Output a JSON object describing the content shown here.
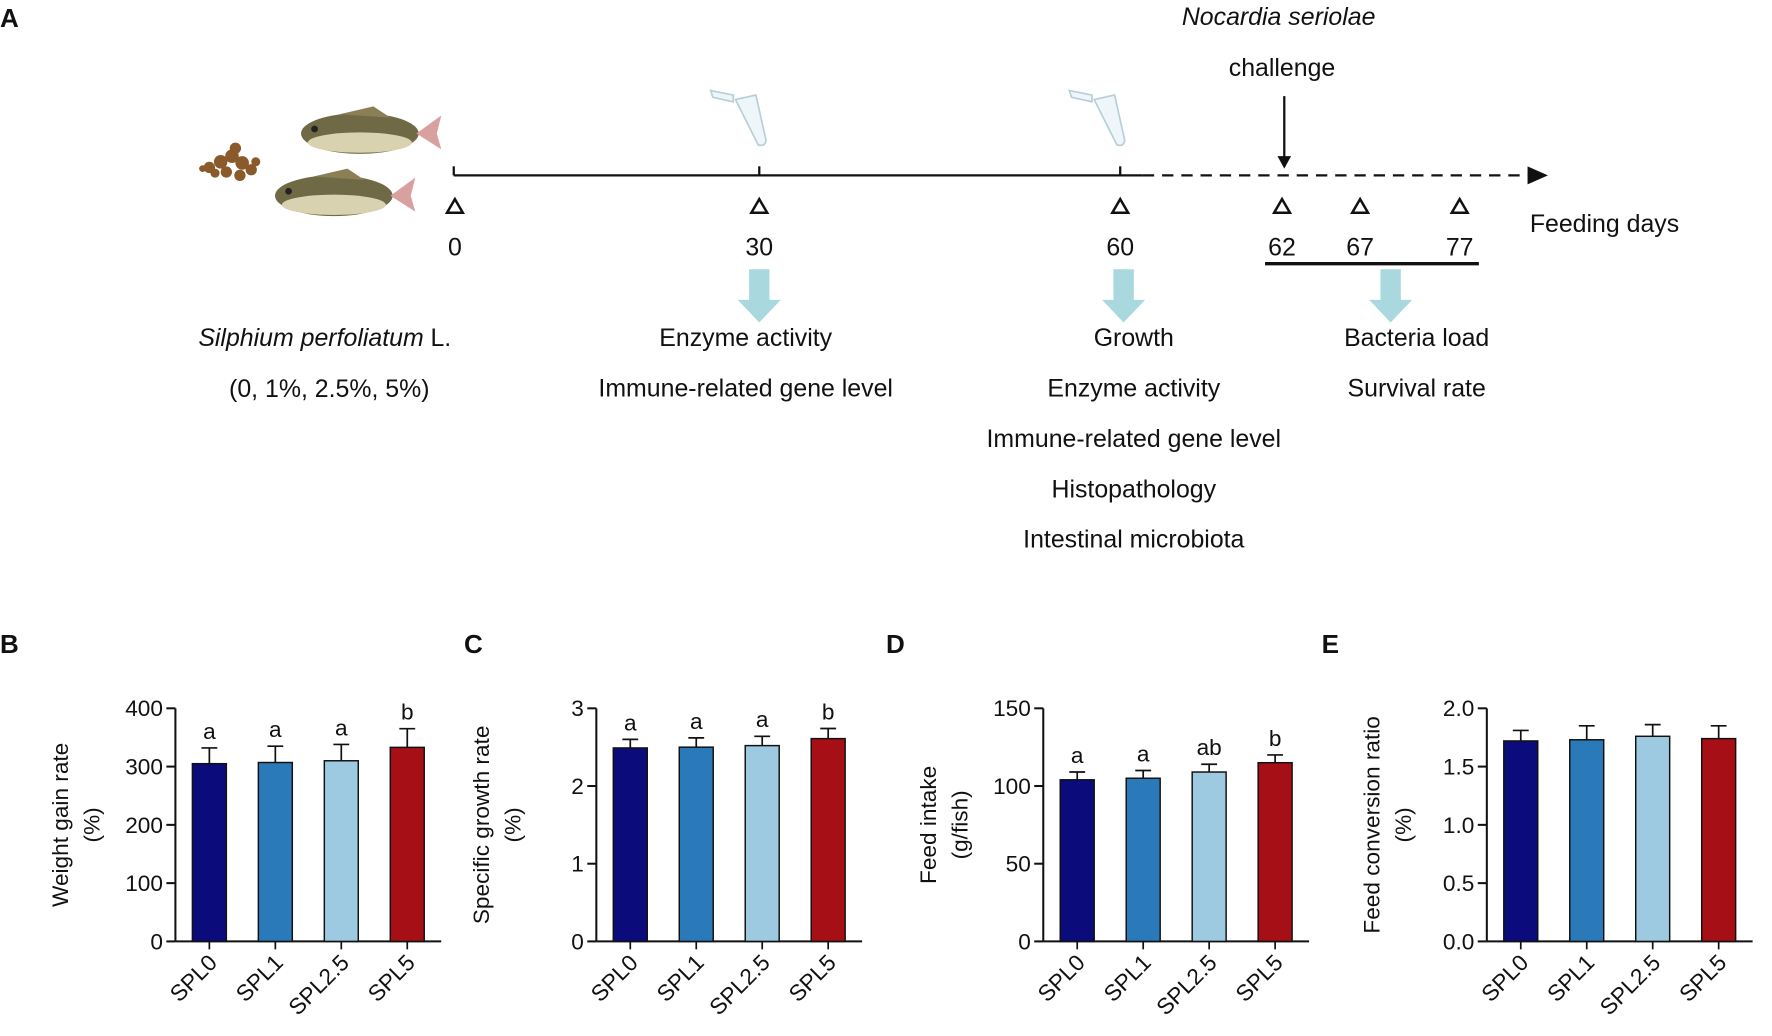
{
  "timeline": {
    "panel": "A",
    "pathogen": "Nocardia seriolae",
    "event": "challenge",
    "axis_label": "Feeding days",
    "days": [
      0,
      30,
      60,
      62,
      67,
      77
    ],
    "diet_species": "Silphium perfoliatum",
    "diet_authority": "L.",
    "diet_doses": "(0, 1%, 2.5%, 5%)",
    "sampling": [
      [
        "Enzyme activity",
        "Immune-related gene level"
      ],
      [
        "Growth",
        "Enzyme activity",
        "Immune-related gene level",
        "Histopathology",
        "Intestinal microbiota"
      ],
      [
        "Bacteria load",
        "Survival rate"
      ]
    ]
  },
  "chart_data": [
    {
      "type": "bar",
      "panel": "B",
      "ylabel": [
        "Weight gain rate",
        "(%)"
      ],
      "categories": [
        "SPL0",
        "SPL1",
        "SPL2.5",
        "SPL5"
      ],
      "values": [
        305,
        307,
        310,
        333
      ],
      "errors": [
        27,
        28,
        28,
        32
      ],
      "annotations": [
        "a",
        "a",
        "a",
        "b"
      ],
      "colors": [
        "#0b0b7c",
        "#2a7aba",
        "#9ecae1",
        "#a50f15"
      ],
      "ylim": [
        0,
        400
      ],
      "yticks": [
        0,
        100,
        200,
        300,
        400
      ]
    },
    {
      "type": "bar",
      "panel": "C",
      "ylabel": [
        "Specific growth rate",
        "(%)"
      ],
      "categories": [
        "SPL0",
        "SPL1",
        "SPL2.5",
        "SPL5"
      ],
      "values": [
        2.49,
        2.5,
        2.52,
        2.61
      ],
      "errors": [
        0.11,
        0.12,
        0.12,
        0.13
      ],
      "annotations": [
        "a",
        "a",
        "a",
        "b"
      ],
      "colors": [
        "#0b0b7c",
        "#2a7aba",
        "#9ecae1",
        "#a50f15"
      ],
      "ylim": [
        0,
        3
      ],
      "yticks": [
        0,
        1,
        2,
        3
      ]
    },
    {
      "type": "bar",
      "panel": "D",
      "ylabel": [
        "Feed intake",
        "(g/fish)"
      ],
      "categories": [
        "SPL0",
        "SPL1",
        "SPL2.5",
        "SPL5"
      ],
      "values": [
        104,
        105,
        109,
        115
      ],
      "errors": [
        5,
        5,
        5,
        5
      ],
      "annotations": [
        "a",
        "a",
        "ab",
        "b"
      ],
      "colors": [
        "#0b0b7c",
        "#2a7aba",
        "#9ecae1",
        "#a50f15"
      ],
      "ylim": [
        0,
        150
      ],
      "yticks": [
        0,
        50,
        100,
        150
      ]
    },
    {
      "type": "bar",
      "panel": "E",
      "ylabel": [
        "Feed conversion ratio",
        "(%)"
      ],
      "categories": [
        "SPL0",
        "SPL1",
        "SPL2.5",
        "SPL5"
      ],
      "values": [
        1.72,
        1.73,
        1.76,
        1.74
      ],
      "errors": [
        0.09,
        0.12,
        0.1,
        0.11
      ],
      "colors": [
        "#0b0b7c",
        "#2a7aba",
        "#9ecae1",
        "#a50f15"
      ],
      "ylim": [
        0,
        2
      ],
      "yticks": [
        {
          "value": 0,
          "label": "0.0"
        },
        {
          "value": 0.5,
          "label": "0.5"
        },
        {
          "value": 1,
          "label": "1.0"
        },
        {
          "value": 1.5,
          "label": "1.5"
        },
        {
          "value": 2,
          "label": "2.0"
        }
      ]
    }
  ]
}
